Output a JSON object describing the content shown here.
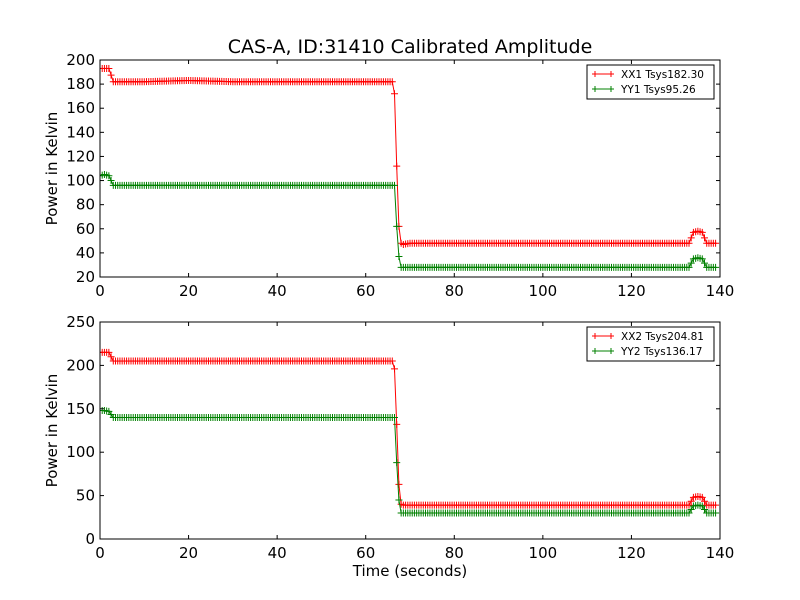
{
  "title": "CAS-A, ID:31410 Calibrated Amplitude",
  "colors": {
    "red": "#ff0000",
    "green": "#008000"
  },
  "chart_data": [
    {
      "type": "line",
      "title": "CAS-A, ID:31410 Calibrated Amplitude",
      "xlabel": "",
      "ylabel": "Power in Kelvin",
      "xlim": [
        0,
        140
      ],
      "ylim": [
        20,
        200
      ],
      "xticks": [
        0,
        20,
        40,
        60,
        80,
        100,
        120,
        140
      ],
      "yticks": [
        20,
        40,
        60,
        80,
        100,
        120,
        140,
        160,
        180,
        200
      ],
      "grid": false,
      "legend_position": "top-right",
      "series": [
        {
          "name": "XX1 Tsys182.30",
          "color": "#ff0000",
          "marker": "+",
          "x": [
            0,
            1,
            2,
            3,
            4,
            10,
            20,
            30,
            40,
            50,
            60,
            66,
            66.5,
            67,
            67.5,
            68,
            68.5,
            70,
            80,
            90,
            100,
            110,
            120,
            130,
            133,
            134,
            135,
            136,
            137,
            138,
            139
          ],
          "y": [
            193,
            193,
            193,
            182,
            182,
            182,
            183,
            182,
            182,
            182,
            182,
            182,
            172,
            112,
            62,
            48,
            47,
            48,
            48,
            48,
            48,
            48,
            48,
            48,
            48,
            57,
            58,
            57,
            48,
            48,
            48
          ]
        },
        {
          "name": "YY1 Tsys95.26",
          "color": "#008000",
          "marker": "+",
          "x": [
            0,
            1,
            2,
            3,
            4,
            10,
            20,
            30,
            40,
            50,
            60,
            66,
            66.5,
            67,
            67.5,
            68,
            68.5,
            70,
            80,
            90,
            100,
            110,
            120,
            130,
            133,
            134,
            135,
            136,
            137,
            138,
            139
          ],
          "y": [
            104,
            105,
            104,
            96,
            96,
            96,
            96,
            96,
            96,
            96,
            96,
            96,
            96,
            62,
            37,
            28,
            28,
            28,
            28,
            28,
            28,
            28,
            28,
            28,
            28,
            35,
            36,
            35,
            28,
            28,
            28
          ]
        }
      ]
    },
    {
      "type": "line",
      "title": "",
      "xlabel": "Time (seconds)",
      "ylabel": "Power in Kelvin",
      "xlim": [
        0,
        140
      ],
      "ylim": [
        0,
        250
      ],
      "xticks": [
        0,
        20,
        40,
        60,
        80,
        100,
        120,
        140
      ],
      "yticks": [
        0,
        50,
        100,
        150,
        200,
        250
      ],
      "grid": false,
      "legend_position": "top-right",
      "series": [
        {
          "name": "XX2 Tsys204.81",
          "color": "#ff0000",
          "marker": "+",
          "x": [
            0,
            1,
            2,
            3,
            4,
            10,
            20,
            30,
            40,
            50,
            60,
            66,
            66.5,
            67,
            67.5,
            68,
            68.5,
            70,
            80,
            90,
            100,
            110,
            120,
            130,
            133,
            134,
            135,
            136,
            137,
            138,
            139
          ],
          "y": [
            215,
            215,
            215,
            205,
            205,
            205,
            205,
            205,
            205,
            205,
            205,
            205,
            196,
            132,
            63,
            40,
            39,
            39,
            39,
            39,
            39,
            39,
            39,
            39,
            39,
            48,
            49,
            48,
            39,
            39,
            39
          ]
        },
        {
          "name": "YY2 Tsys136.17",
          "color": "#008000",
          "marker": "+",
          "x": [
            0,
            1,
            2,
            3,
            4,
            10,
            20,
            30,
            40,
            50,
            60,
            66,
            66.5,
            67,
            67.5,
            68,
            68.5,
            70,
            80,
            90,
            100,
            110,
            120,
            130,
            133,
            134,
            135,
            136,
            137,
            138,
            139
          ],
          "y": [
            148,
            148,
            147,
            140,
            140,
            140,
            140,
            140,
            140,
            140,
            140,
            140,
            140,
            88,
            45,
            30,
            30,
            30,
            30,
            30,
            30,
            30,
            30,
            30,
            30,
            38,
            39,
            38,
            30,
            30,
            30
          ]
        }
      ]
    }
  ]
}
